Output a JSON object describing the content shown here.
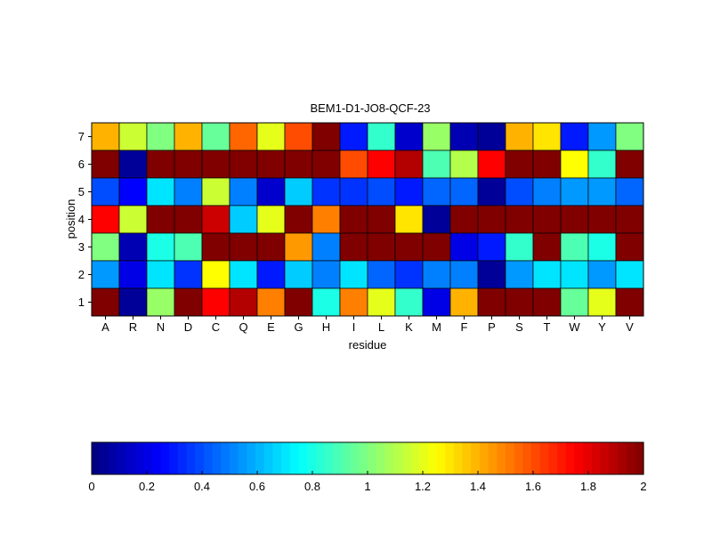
{
  "chart_data": {
    "type": "heatmap",
    "title": "BEM1-D1-JO8-QCF-23",
    "xlabel": "residue",
    "ylabel": "position",
    "x_categories": [
      "A",
      "R",
      "N",
      "D",
      "C",
      "Q",
      "E",
      "G",
      "H",
      "I",
      "L",
      "K",
      "M",
      "F",
      "P",
      "S",
      "T",
      "W",
      "Y",
      "V"
    ],
    "y_categories": [
      "1",
      "2",
      "3",
      "4",
      "5",
      "6",
      "7"
    ],
    "colorscale": "jet",
    "clim": [
      0,
      2
    ],
    "colorbar_ticks": [
      "0",
      "0.2",
      "0.4",
      "0.6",
      "0.8",
      "1",
      "1.2",
      "1.4",
      "1.6",
      "1.8",
      "2"
    ],
    "rows": [
      {
        "position": "7",
        "values": [
          1.4,
          1.15,
          1.0,
          1.4,
          0.95,
          1.55,
          1.2,
          1.6,
          2.0,
          0.3,
          0.85,
          0.15,
          1.05,
          0.1,
          0.05,
          1.4,
          1.3,
          0.3,
          0.55,
          1.0
        ]
      },
      {
        "position": "6",
        "values": [
          2.0,
          0.05,
          2.0,
          2.0,
          2.0,
          2.0,
          2.0,
          2.0,
          2.0,
          1.6,
          1.75,
          1.9,
          0.9,
          1.1,
          1.75,
          2.0,
          2.0,
          1.25,
          0.85,
          2.0
        ]
      },
      {
        "position": "5",
        "values": [
          0.4,
          0.25,
          0.7,
          0.5,
          1.15,
          0.5,
          0.15,
          0.65,
          0.35,
          0.35,
          0.4,
          0.3,
          0.45,
          0.45,
          0.05,
          0.4,
          0.5,
          0.55,
          0.55,
          0.45
        ]
      },
      {
        "position": "4",
        "values": [
          1.75,
          1.15,
          2.0,
          2.0,
          1.85,
          0.65,
          1.2,
          2.0,
          1.5,
          2.0,
          2.0,
          1.3,
          0.05,
          2.0,
          2.0,
          2.0,
          2.0,
          2.0,
          2.0,
          2.0
        ]
      },
      {
        "position": "3",
        "values": [
          1.0,
          0.1,
          0.8,
          0.9,
          2.0,
          2.0,
          2.0,
          1.45,
          0.5,
          2.0,
          2.0,
          2.0,
          2.0,
          0.2,
          0.3,
          0.85,
          2.0,
          0.9,
          0.8,
          2.0
        ]
      },
      {
        "position": "2",
        "values": [
          0.55,
          0.2,
          0.7,
          0.35,
          1.25,
          0.7,
          0.3,
          0.65,
          0.5,
          0.7,
          0.45,
          0.35,
          0.5,
          0.5,
          0.05,
          0.55,
          0.7,
          0.7,
          0.55,
          0.7
        ]
      },
      {
        "position": "1",
        "values": [
          2.0,
          0.05,
          1.05,
          2.0,
          1.75,
          1.9,
          1.5,
          2.0,
          0.8,
          1.5,
          1.2,
          0.85,
          0.2,
          1.4,
          2.0,
          2.0,
          2.0,
          0.95,
          1.2,
          2.0
        ]
      }
    ]
  }
}
